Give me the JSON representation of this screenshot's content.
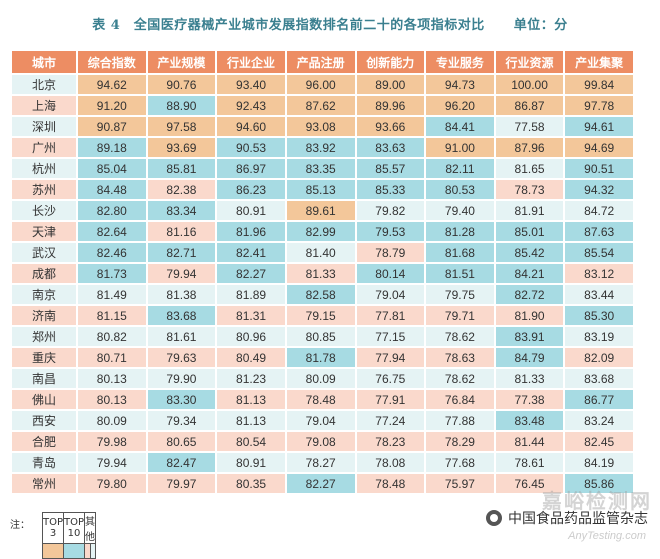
{
  "title": "表 4　全国医疗器械产业城市发展指数排名前二十的各项指标对比",
  "unit": "单位：分",
  "headers": [
    "城市",
    "综合指数",
    "产业规模",
    "行业企业",
    "产品注册",
    "创新能力",
    "专业服务",
    "行业资源",
    "产业集聚"
  ],
  "rows": [
    {
      "city": "北京",
      "vals": [
        "94.62",
        "90.76",
        "93.40",
        "96.00",
        "89.00",
        "94.73",
        "100.00",
        "99.84"
      ],
      "cls": [
        "t3",
        "t3",
        "t3",
        "t3",
        "t3",
        "t3",
        "t3",
        "t3"
      ]
    },
    {
      "city": "上海",
      "vals": [
        "91.20",
        "88.90",
        "92.43",
        "87.62",
        "89.96",
        "96.20",
        "86.87",
        "97.78"
      ],
      "cls": [
        "t3",
        "t10",
        "t3",
        "t3",
        "t3",
        "t3",
        "t3",
        "t3"
      ]
    },
    {
      "city": "深圳",
      "vals": [
        "90.87",
        "97.58",
        "94.60",
        "93.08",
        "93.66",
        "84.41",
        "77.58",
        "94.61"
      ],
      "cls": [
        "t3",
        "t3",
        "t3",
        "t3",
        "t3",
        "t10",
        "e",
        "t10"
      ]
    },
    {
      "city": "广州",
      "vals": [
        "89.18",
        "93.69",
        "90.53",
        "83.92",
        "83.63",
        "91.00",
        "87.96",
        "94.69"
      ],
      "cls": [
        "t10",
        "t3",
        "t10",
        "t10",
        "t10",
        "t3",
        "t3",
        "t3"
      ]
    },
    {
      "city": "杭州",
      "vals": [
        "85.04",
        "85.81",
        "86.97",
        "83.35",
        "85.57",
        "82.11",
        "81.65",
        "90.51"
      ],
      "cls": [
        "t10",
        "t10",
        "t10",
        "t10",
        "t10",
        "t10",
        "e",
        "t10"
      ]
    },
    {
      "city": "苏州",
      "vals": [
        "84.48",
        "82.38",
        "86.23",
        "85.13",
        "85.33",
        "80.53",
        "78.73",
        "94.32"
      ],
      "cls": [
        "t10",
        "o",
        "t10",
        "t10",
        "t10",
        "t10",
        "o",
        "t10"
      ]
    },
    {
      "city": "长沙",
      "vals": [
        "82.80",
        "83.34",
        "80.91",
        "89.61",
        "79.82",
        "79.40",
        "81.91",
        "84.72"
      ],
      "cls": [
        "t10",
        "t10",
        "e",
        "t3",
        "e",
        "e",
        "e",
        "e"
      ]
    },
    {
      "city": "天津",
      "vals": [
        "82.64",
        "81.16",
        "81.96",
        "82.99",
        "79.53",
        "81.28",
        "85.01",
        "87.63"
      ],
      "cls": [
        "t10",
        "o",
        "t10",
        "t10",
        "t10",
        "t10",
        "t10",
        "t10"
      ]
    },
    {
      "city": "武汉",
      "vals": [
        "82.46",
        "82.71",
        "82.41",
        "81.40",
        "78.79",
        "81.68",
        "85.42",
        "85.54"
      ],
      "cls": [
        "t10",
        "t10",
        "t10",
        "e",
        "o",
        "t10",
        "t10",
        "t10"
      ]
    },
    {
      "city": "成都",
      "vals": [
        "81.73",
        "79.94",
        "82.27",
        "81.33",
        "80.14",
        "81.51",
        "84.21",
        "83.12"
      ],
      "cls": [
        "t10",
        "o",
        "t10",
        "o",
        "t10",
        "t10",
        "t10",
        "o"
      ]
    },
    {
      "city": "南京",
      "vals": [
        "81.49",
        "81.38",
        "81.89",
        "82.58",
        "79.04",
        "79.75",
        "82.72",
        "83.44"
      ],
      "cls": [
        "e",
        "e",
        "e",
        "t10",
        "e",
        "e",
        "t10",
        "e"
      ]
    },
    {
      "city": "济南",
      "vals": [
        "81.15",
        "83.68",
        "81.31",
        "79.15",
        "77.81",
        "79.71",
        "81.90",
        "85.30"
      ],
      "cls": [
        "o",
        "t10",
        "o",
        "o",
        "o",
        "o",
        "o",
        "t10"
      ]
    },
    {
      "city": "郑州",
      "vals": [
        "80.82",
        "81.61",
        "80.96",
        "80.85",
        "77.15",
        "78.62",
        "83.91",
        "83.19"
      ],
      "cls": [
        "e",
        "e",
        "e",
        "e",
        "e",
        "e",
        "t10",
        "e"
      ]
    },
    {
      "city": "重庆",
      "vals": [
        "80.71",
        "79.63",
        "80.49",
        "81.78",
        "77.94",
        "78.63",
        "84.79",
        "82.09"
      ],
      "cls": [
        "o",
        "o",
        "o",
        "t10",
        "o",
        "o",
        "t10",
        "o"
      ]
    },
    {
      "city": "南昌",
      "vals": [
        "80.13",
        "79.90",
        "81.23",
        "80.09",
        "76.75",
        "78.62",
        "81.33",
        "83.68"
      ],
      "cls": [
        "e",
        "e",
        "e",
        "e",
        "e",
        "e",
        "e",
        "e"
      ]
    },
    {
      "city": "佛山",
      "vals": [
        "80.13",
        "83.30",
        "81.13",
        "78.48",
        "77.91",
        "76.84",
        "77.38",
        "86.77"
      ],
      "cls": [
        "o",
        "t10",
        "o",
        "o",
        "o",
        "o",
        "o",
        "t10"
      ]
    },
    {
      "city": "西安",
      "vals": [
        "80.09",
        "79.34",
        "81.13",
        "79.04",
        "77.24",
        "77.88",
        "83.48",
        "83.24"
      ],
      "cls": [
        "e",
        "e",
        "e",
        "e",
        "e",
        "e",
        "t10",
        "e"
      ]
    },
    {
      "city": "合肥",
      "vals": [
        "79.98",
        "80.65",
        "80.54",
        "79.08",
        "78.23",
        "78.29",
        "81.44",
        "82.45"
      ],
      "cls": [
        "o",
        "o",
        "o",
        "o",
        "o",
        "o",
        "o",
        "o"
      ]
    },
    {
      "city": "青岛",
      "vals": [
        "79.94",
        "82.47",
        "80.91",
        "78.27",
        "78.08",
        "77.68",
        "78.61",
        "84.19"
      ],
      "cls": [
        "e",
        "t10",
        "e",
        "e",
        "e",
        "e",
        "e",
        "e"
      ]
    },
    {
      "city": "常州",
      "vals": [
        "79.80",
        "79.97",
        "80.35",
        "82.27",
        "78.48",
        "75.97",
        "76.45",
        "85.86"
      ],
      "cls": [
        "o",
        "o",
        "o",
        "t10",
        "o",
        "o",
        "o",
        "t10"
      ]
    }
  ],
  "city_cls": [
    "e",
    "o",
    "e",
    "o",
    "e",
    "o",
    "e",
    "o",
    "e",
    "o",
    "e",
    "o",
    "e",
    "o",
    "e",
    "o",
    "e",
    "o",
    "e",
    "o"
  ],
  "legend": {
    "note": "注：",
    "top3": "TOP 3",
    "top10": "TOP 10",
    "other": "其他"
  },
  "colors": {
    "header": "#ed8d63",
    "top3": "#f3c79a",
    "top10": "#a7dbe3",
    "other_odd": "#fad9cc",
    "other_even": "#e5f3f4",
    "title": "#3a7f8f"
  },
  "watermark": {
    "source": "中国食品药品监管杂志",
    "stamp": "嘉峪检测网",
    "stamp_sub": "AnyTesting.com"
  }
}
